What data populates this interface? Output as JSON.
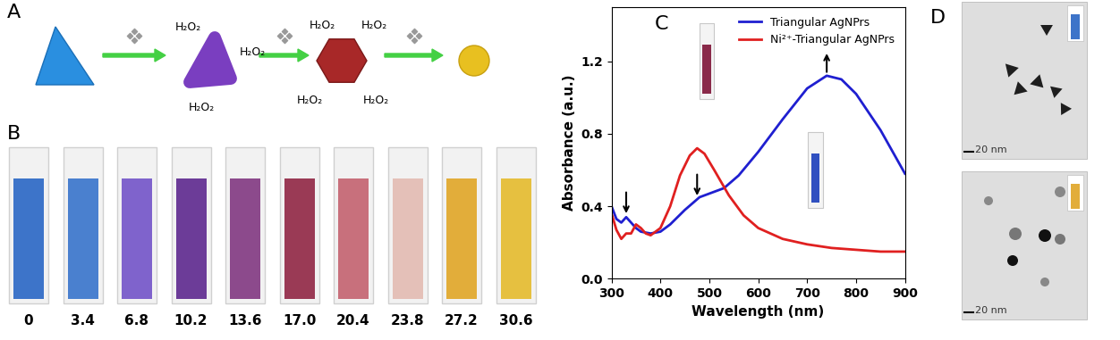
{
  "panel_labels": [
    "A",
    "B",
    "C",
    "D"
  ],
  "scheme": {
    "particle_labels": [
      [
        "H₂O₂",
        "H₂O₂",
        "H₂O₂"
      ],
      [
        "H₂O₂",
        "H₂O₂",
        "H₂O₂",
        "H₂O₂"
      ]
    ]
  },
  "vials": {
    "labels": [
      0,
      3.4,
      6.8,
      10.2,
      13.6,
      17.0,
      20.4,
      23.8,
      27.2,
      30.6
    ],
    "colors": [
      "#3d74c9",
      "#4a80cf",
      "#7f63cc",
      "#6c3c98",
      "#8c4a8c",
      "#9a3a55",
      "#c8707c",
      "#e4c0b8",
      "#e2ad3a",
      "#e6c040"
    ]
  },
  "chart_data": {
    "type": "line",
    "xlabel": "Wavelength (nm)",
    "ylabel": "Absorbance (a.u.)",
    "xlim": [
      300,
      900
    ],
    "xticks": [
      300,
      400,
      500,
      600,
      700,
      800,
      900
    ],
    "ylim": [
      0,
      1.5
    ],
    "yticks": [
      0.0,
      0.4,
      0.8,
      1.2
    ],
    "legend": "upper right",
    "series": [
      {
        "name": "Triangular AgNPrs",
        "color": "#1f1fd0",
        "x": [
          300,
          310,
          320,
          330,
          340,
          350,
          360,
          380,
          400,
          420,
          450,
          480,
          500,
          530,
          560,
          600,
          650,
          700,
          740,
          770,
          800,
          850,
          900
        ],
        "values": [
          0.4,
          0.33,
          0.31,
          0.34,
          0.31,
          0.28,
          0.26,
          0.25,
          0.26,
          0.3,
          0.38,
          0.45,
          0.47,
          0.5,
          0.57,
          0.7,
          0.88,
          1.05,
          1.12,
          1.1,
          1.02,
          0.82,
          0.58
        ]
      },
      {
        "name": "Ni²⁺-Triangular AgNPrs",
        "color": "#e02020",
        "x": [
          300,
          310,
          320,
          330,
          340,
          350,
          360,
          370,
          380,
          400,
          420,
          440,
          460,
          475,
          490,
          510,
          540,
          570,
          600,
          650,
          700,
          750,
          800,
          850,
          900
        ],
        "values": [
          0.36,
          0.27,
          0.22,
          0.25,
          0.25,
          0.3,
          0.28,
          0.25,
          0.24,
          0.28,
          0.4,
          0.57,
          0.68,
          0.72,
          0.69,
          0.6,
          0.46,
          0.35,
          0.28,
          0.22,
          0.19,
          0.17,
          0.16,
          0.15,
          0.15
        ]
      }
    ]
  },
  "tem": {
    "scale_bars": [
      "20 nm",
      "20 nm"
    ]
  }
}
